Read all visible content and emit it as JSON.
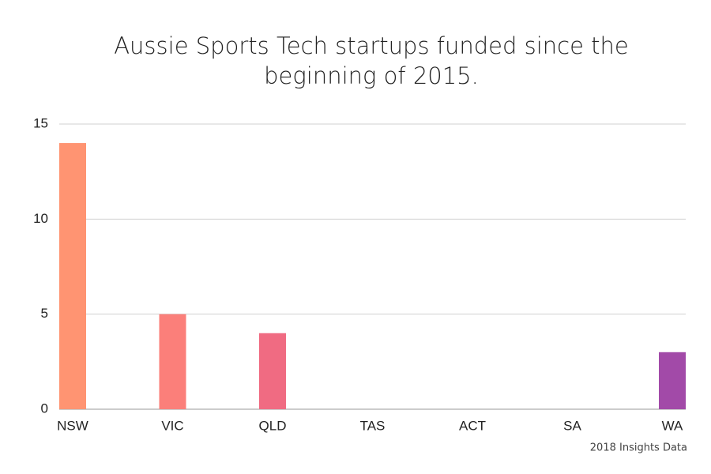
{
  "chart_data": {
    "type": "bar",
    "title": [
      "Aussie Sports Tech startups funded since the",
      "beginning of 2015."
    ],
    "source": "2018 Insights Data",
    "categories": [
      "NSW",
      "VIC",
      "QLD",
      "TAS",
      "ACT",
      "SA",
      "WA"
    ],
    "values": [
      14,
      5,
      4,
      0,
      0,
      0,
      3
    ],
    "colors": [
      "#ff9472",
      "#fb7f7a",
      "#f06b82",
      "#e05a8c",
      "#cc5196",
      "#b84ca0",
      "#a24aa8"
    ],
    "ylim": [
      0,
      15
    ],
    "yticks": [
      0,
      5,
      10,
      15
    ],
    "grid": true
  }
}
